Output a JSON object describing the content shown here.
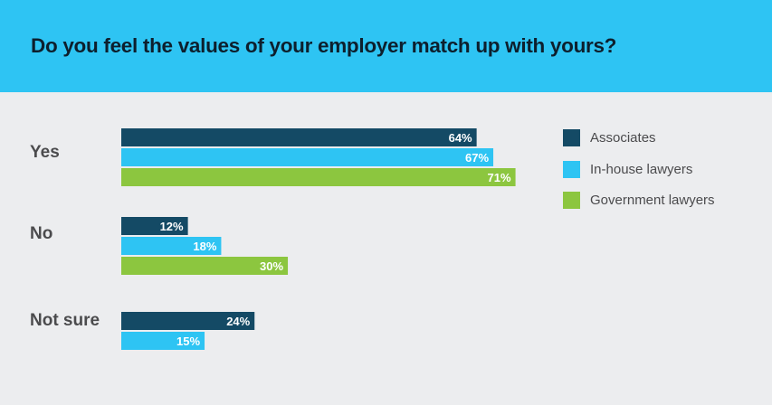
{
  "header": {
    "title": "Do you feel the values of your employer match up with yours?"
  },
  "colors": {
    "header_bg": "#2ec4f3",
    "page_bg": "#ecedef",
    "Associates": "#144a65",
    "In-house lawyers": "#2ec4f3",
    "Government lawyers": "#8cc63f"
  },
  "chart_data": {
    "type": "bar",
    "orientation": "horizontal",
    "title": "Do you feel the values of your employer match up with yours?",
    "categories": [
      "Yes",
      "No",
      "Not sure"
    ],
    "series": [
      {
        "name": "Associates",
        "values": [
          64,
          12,
          24
        ],
        "labels": [
          "64%",
          "12%",
          "24%"
        ]
      },
      {
        "name": "In-house lawyers",
        "values": [
          67,
          18,
          15
        ],
        "labels": [
          "67%",
          "18%",
          "15%"
        ]
      },
      {
        "name": "Government lawyers",
        "values": [
          71,
          30,
          null
        ],
        "labels": [
          "71%",
          "30%",
          ""
        ]
      }
    ],
    "unit": "%",
    "xlim": [
      0,
      100
    ],
    "grid": false,
    "legend": "top-right"
  }
}
